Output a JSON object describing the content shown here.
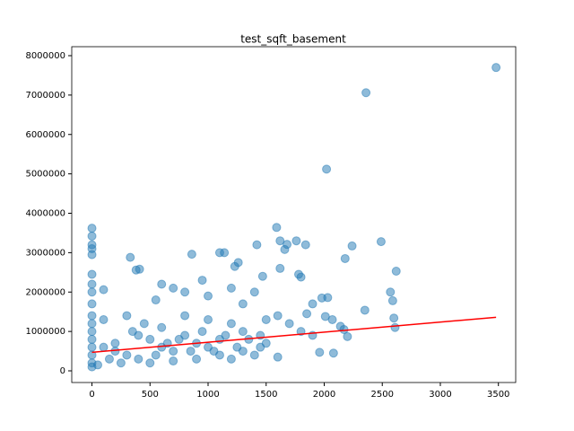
{
  "chart_data": {
    "type": "scatter",
    "title": "test_sqft_basement",
    "xlim": [
      -174,
      3649
    ],
    "ylim": [
      -296000,
      8228000
    ],
    "xticks": [
      0,
      500,
      1000,
      1500,
      2000,
      2500,
      3000,
      3500
    ],
    "yticks": [
      0,
      1000000,
      2000000,
      3000000,
      4000000,
      5000000,
      6000000,
      7000000,
      8000000
    ],
    "x": [
      3480,
      2360,
      2020,
      0,
      0,
      0,
      0,
      0,
      1590,
      1620,
      1760,
      1840,
      1680,
      1420,
      1660,
      2240,
      2490,
      2180,
      2620,
      2570,
      2590,
      2350,
      2600,
      2610,
      330,
      380,
      410,
      860,
      1100,
      1140,
      1260,
      1230,
      1470,
      1620,
      1780,
      1800,
      1900,
      1980,
      2030,
      2070,
      2140,
      2170,
      2200,
      2080,
      1960,
      2010,
      1850,
      0,
      0,
      0,
      0,
      0,
      0,
      0,
      0,
      0,
      0,
      0,
      0,
      100,
      100,
      600,
      550,
      700,
      800,
      950,
      1000,
      1200,
      1400,
      1300,
      1500,
      1600,
      1700,
      1800,
      1900,
      1500,
      1400,
      1600,
      1200,
      200,
      300,
      400,
      500,
      600,
      700,
      800,
      900,
      1000,
      1100,
      1200,
      1300,
      1000,
      800,
      600,
      400,
      300,
      200,
      150,
      250,
      500,
      700,
      900,
      1100,
      1300,
      1450,
      50,
      100,
      350,
      450,
      550,
      650,
      750,
      850,
      950,
      1050,
      1150,
      1250,
      1350,
      1450
    ],
    "series": [
      {
        "color": "#1f77b4",
        "values": [
          7700000,
          7060000,
          5120000,
          3620000,
          3420000,
          3200000,
          3100000,
          2950000,
          3640000,
          3300000,
          3300000,
          3200000,
          3210000,
          3200000,
          3080000,
          3170000,
          3280000,
          2850000,
          2530000,
          2000000,
          1780000,
          1540000,
          1340000,
          1100000,
          2880000,
          2560000,
          2580000,
          2960000,
          3000000,
          3000000,
          2750000,
          2650000,
          2400000,
          2600000,
          2450000,
          2380000,
          1700000,
          1850000,
          1860000,
          1300000,
          1130000,
          1050000,
          870000,
          450000,
          470000,
          1380000,
          1450000,
          2450000,
          2200000,
          2000000,
          1700000,
          1400000,
          1200000,
          1000000,
          800000,
          600000,
          400000,
          200000,
          100000,
          2060000,
          1300000,
          2200000,
          1800000,
          2100000,
          2000000,
          2300000,
          1900000,
          2100000,
          2000000,
          1700000,
          1300000,
          1400000,
          1200000,
          1000000,
          900000,
          700000,
          400000,
          350000,
          300000,
          500000,
          400000,
          300000,
          800000,
          600000,
          500000,
          900000,
          700000,
          600000,
          800000,
          1200000,
          1000000,
          1300000,
          1400000,
          1100000,
          900000,
          1400000,
          700000,
          300000,
          200000,
          200000,
          250000,
          300000,
          400000,
          500000,
          600000,
          150000,
          600000,
          1000000,
          1200000,
          400000,
          700000,
          800000,
          500000,
          1000000,
          500000,
          900000,
          600000,
          800000,
          900000
        ]
      }
    ],
    "fit": {
      "color": "#ff0000",
      "x": [
        0,
        3480
      ],
      "values": [
        470000,
        1360000
      ]
    }
  }
}
